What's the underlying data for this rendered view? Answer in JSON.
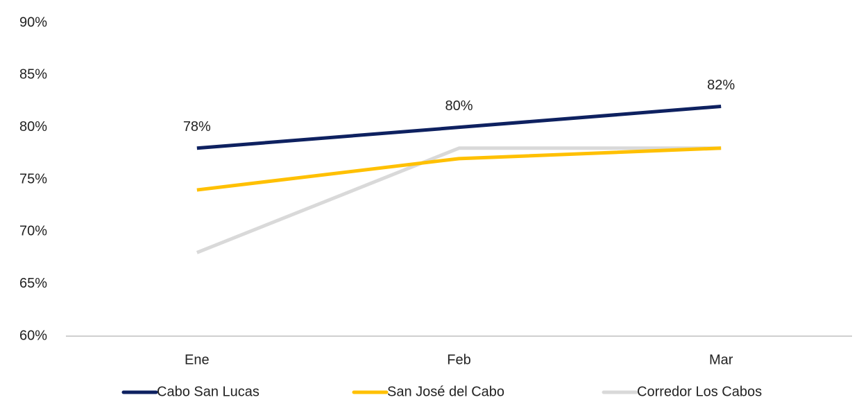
{
  "chart_data": {
    "type": "line",
    "categories": [
      "Ene",
      "Feb",
      "Mar"
    ],
    "series": [
      {
        "name": "Cabo San Lucas",
        "color": "#0e2160",
        "values": [
          78,
          80,
          82
        ],
        "value_labels": [
          "78%",
          "80%",
          "82%"
        ]
      },
      {
        "name": "San José del Cabo",
        "color": "#ffc000",
        "values": [
          74,
          77,
          78
        ]
      },
      {
        "name": "Corredor Los Cabos",
        "color": "#d9d9d9",
        "values": [
          68,
          78,
          78
        ]
      }
    ],
    "ylim": [
      60,
      90
    ],
    "yticks": [
      {
        "value": 60,
        "label": "60%"
      },
      {
        "value": 65,
        "label": "65%"
      },
      {
        "value": 70,
        "label": "70%"
      },
      {
        "value": 75,
        "label": "75%"
      },
      {
        "value": 80,
        "label": "80%"
      },
      {
        "value": 85,
        "label": "85%"
      },
      {
        "value": 90,
        "label": "90%"
      }
    ],
    "grid": false,
    "legend": "bottom"
  }
}
